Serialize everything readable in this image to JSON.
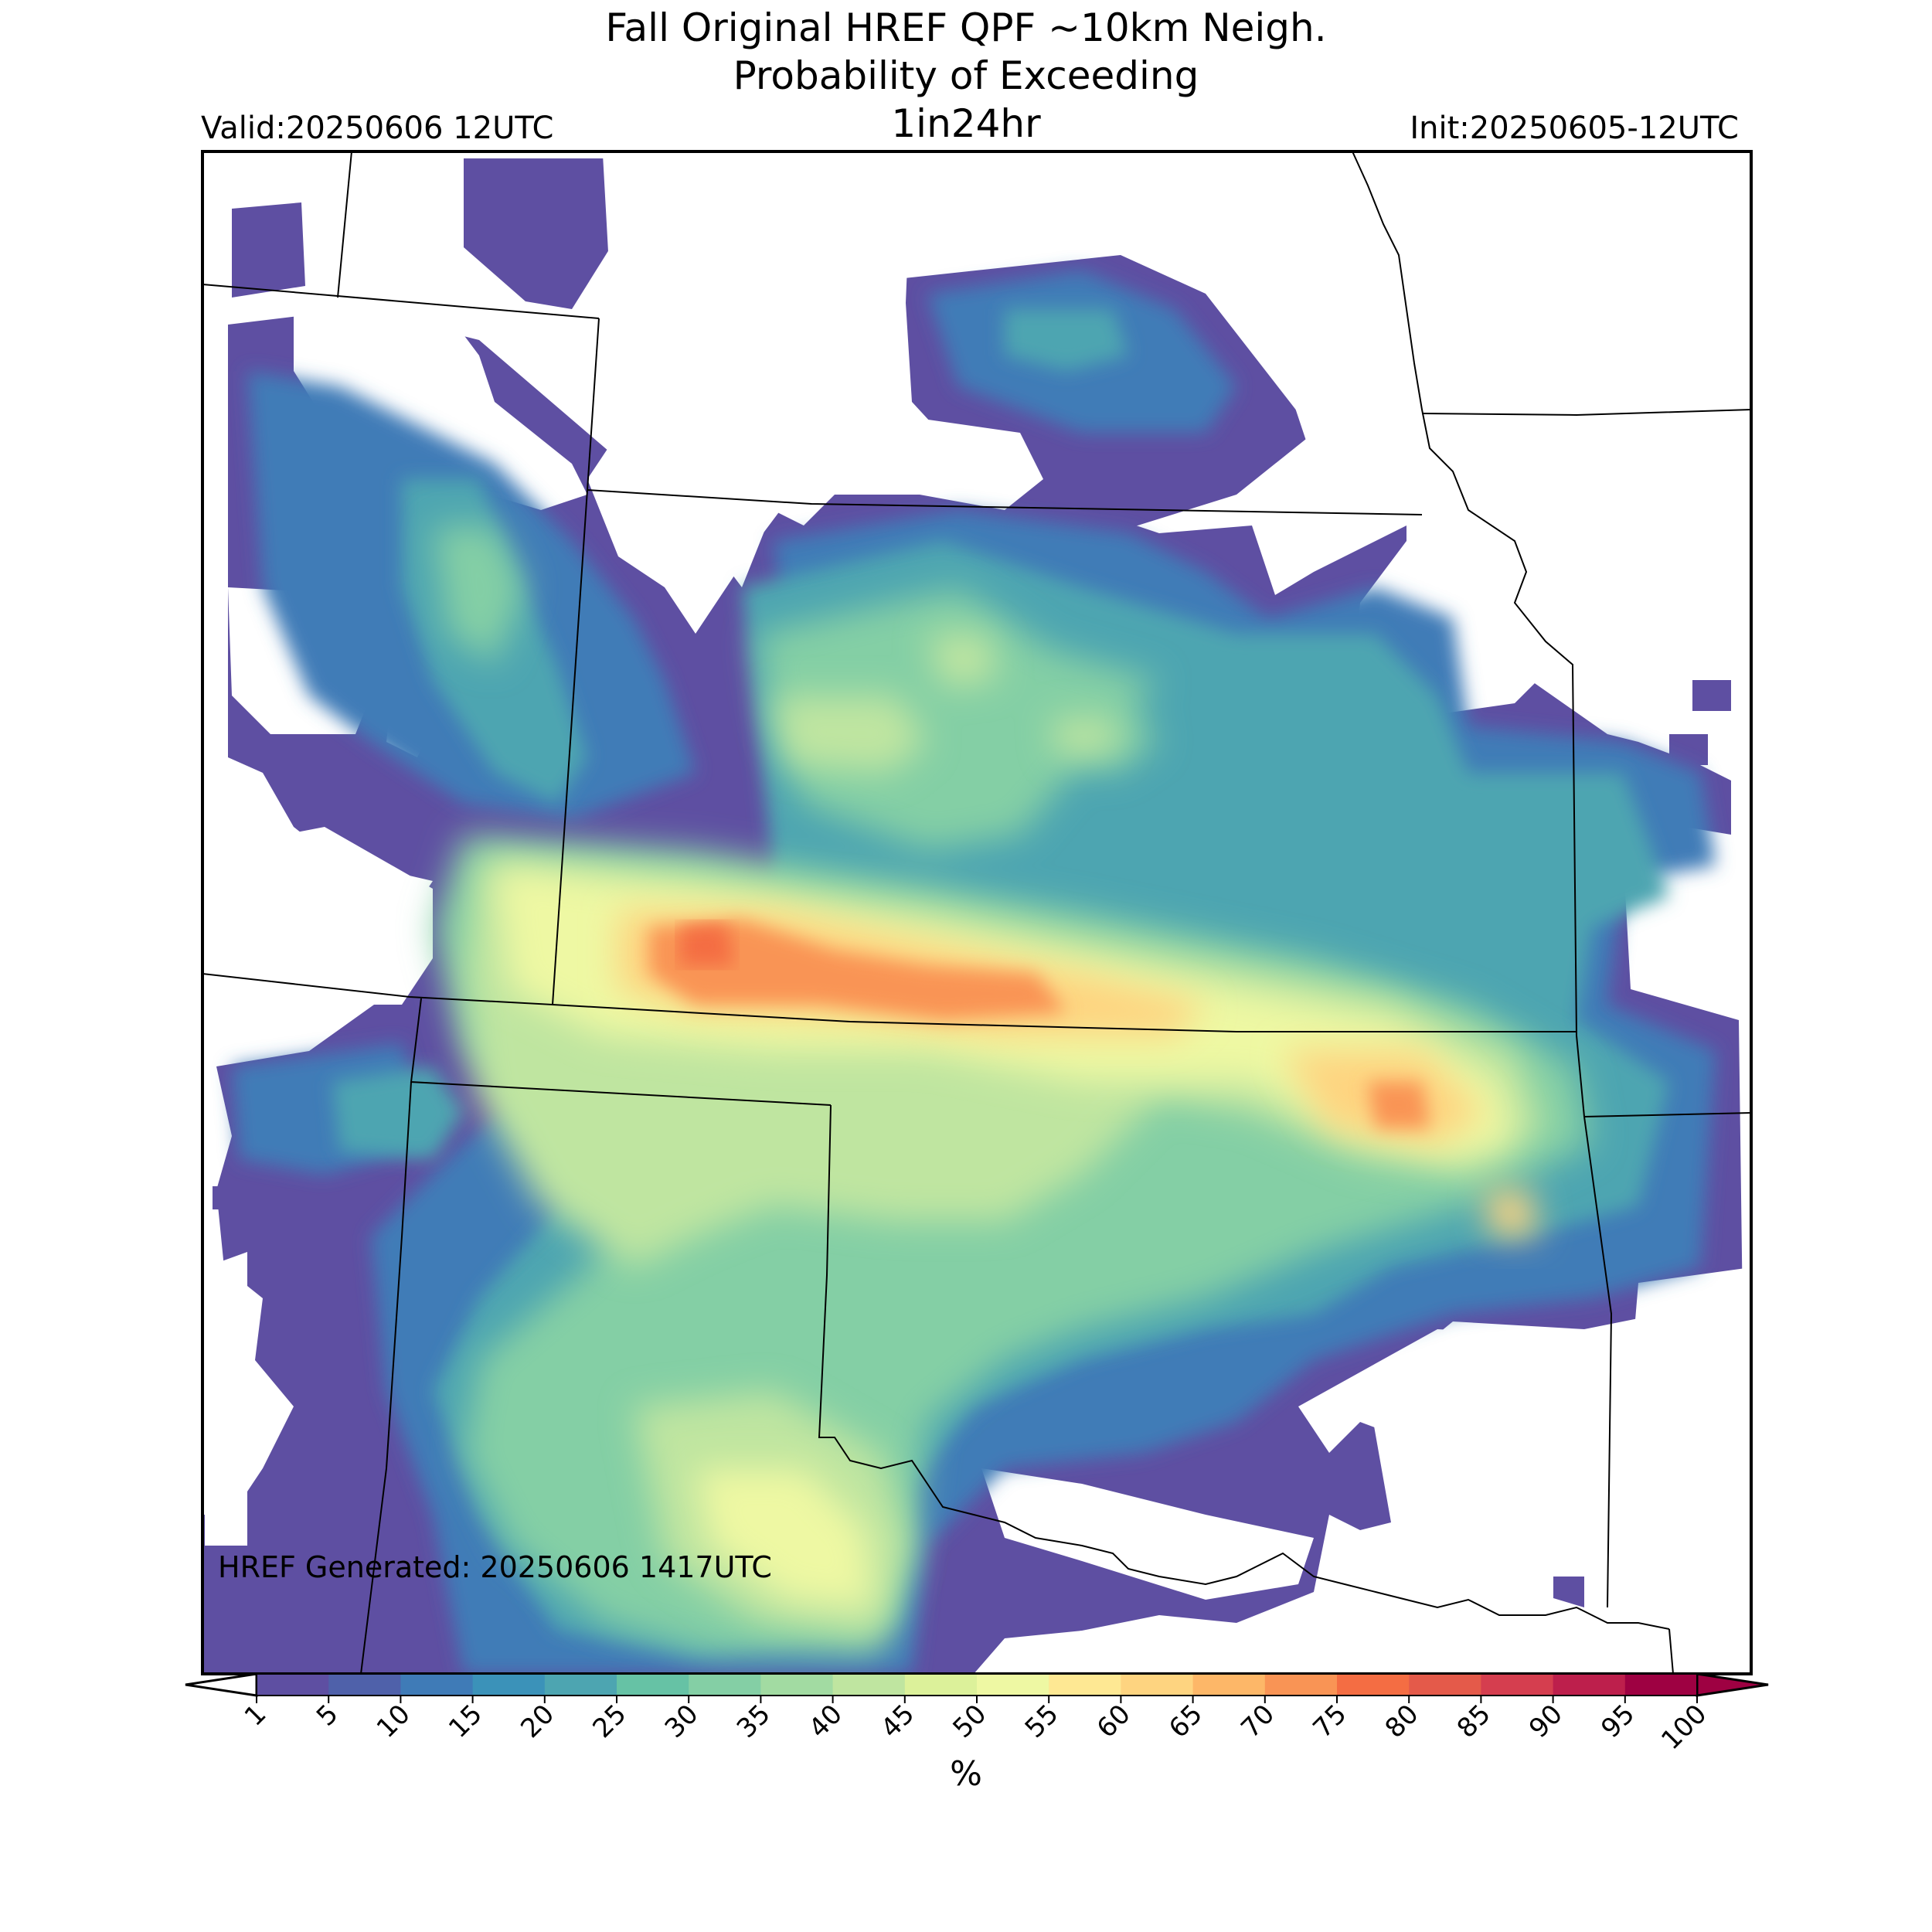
{
  "header": {
    "title_line1": "Fall Original HREF QPF ~10km Neigh.",
    "title_line2": "Probability of Exceeding",
    "title_line3": "1in24hr",
    "valid": "Valid:20250606 12UTC",
    "init": "Init:20250605-12UTC"
  },
  "map": {
    "generated": "HREF Generated: 20250606 1417UTC",
    "colormap": "Spectral (reversed)"
  },
  "colorbar": {
    "label": "%",
    "ticks": [
      "1",
      "5",
      "10",
      "15",
      "20",
      "25",
      "30",
      "35",
      "40",
      "45",
      "50",
      "55",
      "60",
      "65",
      "70",
      "75",
      "80",
      "85",
      "90",
      "95",
      "100"
    ],
    "colors": [
      "#5e4fa2",
      "#4f61aa",
      "#3f7bb7",
      "#3b92b9",
      "#4da5b1",
      "#66c2a5",
      "#84cfa5",
      "#a2dba2",
      "#bfe5a0",
      "#dcf19a",
      "#eef8a3",
      "#fee893",
      "#fed480",
      "#fdb768",
      "#f99455",
      "#f46d43",
      "#e45a4a",
      "#d53e4f",
      "#bd1f4c",
      "#9e0142"
    ],
    "under_color": "#ffffff",
    "over_color": "#9e0142"
  }
}
